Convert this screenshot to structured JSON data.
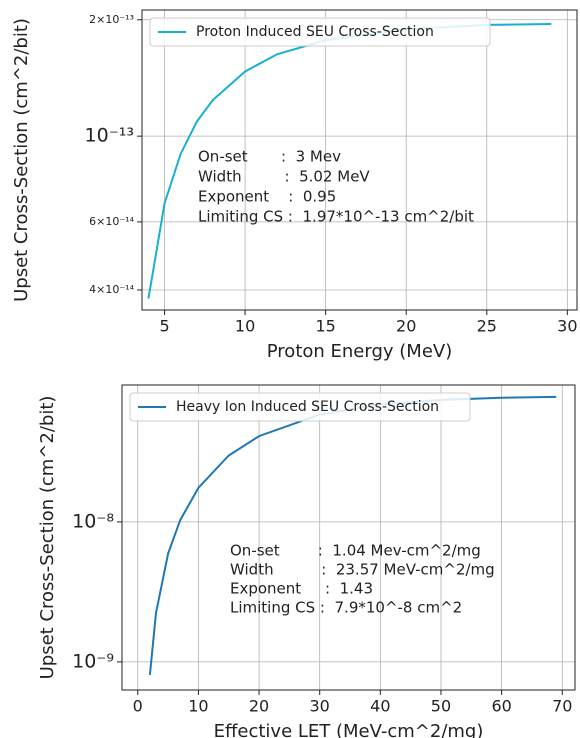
{
  "chart_data": [
    {
      "type": "line",
      "log_y": true,
      "grid": true,
      "legend": "upper left",
      "x_label": "Proton Energy (MeV)",
      "y_label": "Upset Cross-Section (cm^2/bit)",
      "xlim": [
        3.6,
        30.6
      ],
      "xticks": [
        5,
        10,
        15,
        20,
        25,
        30
      ],
      "ylim": [
        3.55e-14,
        2.12e-13
      ],
      "yticks": [
        {
          "value": 4e-14,
          "label": "4×10⁻¹⁴"
        },
        {
          "value": 6e-14,
          "label": "6×10⁻¹⁴"
        },
        {
          "value": 1e-13,
          "label": "10⁻¹³"
        },
        {
          "value": 2e-13,
          "label": "2×10⁻¹³"
        }
      ],
      "series": [
        {
          "name": "Proton Induced SEU Cross-Section",
          "color": "#17b0d0",
          "x": [
            4,
            5,
            6,
            7,
            8,
            10,
            12,
            15,
            20,
            25,
            29
          ],
          "values": [
            3.8e-14,
            6.7e-14,
            9e-14,
            1.09e-13,
            1.24e-13,
            1.47e-13,
            1.63e-13,
            1.77e-13,
            1.89e-13,
            1.94e-13,
            1.95e-13
          ]
        }
      ],
      "annotation": [
        "On-set       :  3 Mev",
        "Width         :  5.02 MeV",
        "Exponent    :  0.95",
        "Limiting CS :  1.97*10^-13 cm^2/bit"
      ]
    },
    {
      "type": "line",
      "log_y": true,
      "grid": true,
      "legend": "upper left",
      "x_label": "Effective LET (MeV-cm^2/mg)",
      "y_label": "Upset Cross-Section (cm^2/bit)",
      "xlim": [
        -2.6,
        72.1
      ],
      "xticks": [
        0,
        10,
        20,
        30,
        40,
        50,
        60,
        70
      ],
      "ylim": [
        6.3e-10,
        9.5e-08
      ],
      "yticks": [
        {
          "value": 1e-09,
          "label": "10⁻⁹"
        },
        {
          "value": 1e-08,
          "label": "10⁻⁸"
        }
      ],
      "series": [
        {
          "name": "Heavy Ion Induced SEU Cross-Section",
          "color": "#1f77b4",
          "x": [
            2,
            3,
            5,
            7,
            10,
            15,
            20,
            30,
            40,
            50,
            60,
            69
          ],
          "values": [
            8.06e-10,
            2.23e-09,
            5.93e-09,
            1.03e-08,
            1.75e-08,
            2.98e-08,
            4.1e-08,
            5.84e-08,
            6.89e-08,
            7.44e-08,
            7.71e-08,
            7.82e-08
          ]
        }
      ],
      "annotation": [
        "On-set        :  1.04 Mev-cm^2/mg",
        "Width          :  23.57 MeV-cm^2/mg",
        "Exponent     :  1.43",
        "Limiting CS :  7.9*10^-8 cm^2"
      ]
    }
  ]
}
